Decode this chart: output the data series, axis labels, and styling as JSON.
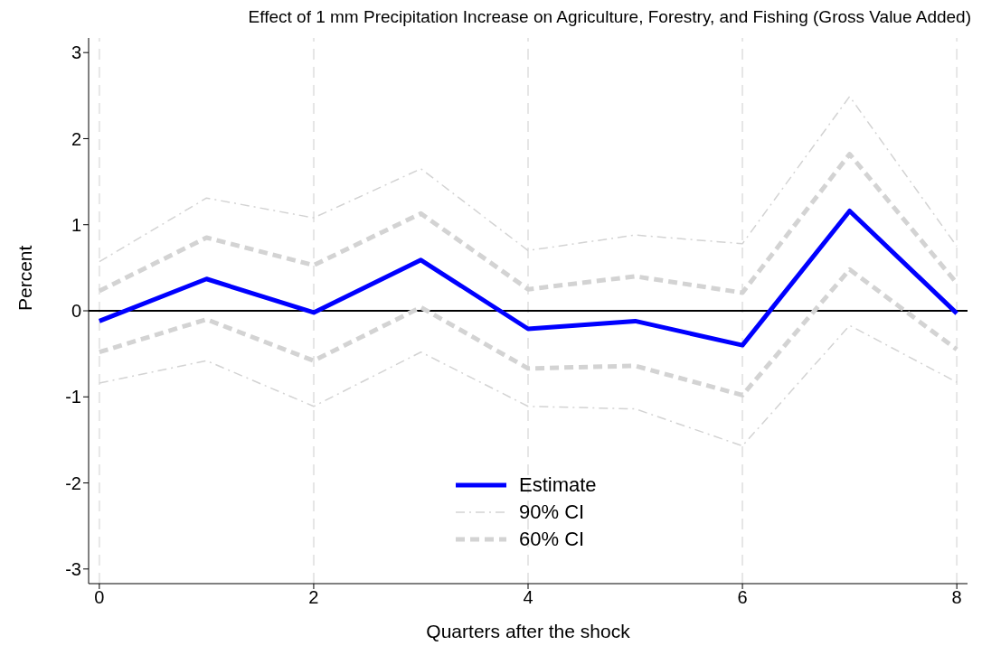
{
  "chart_data": {
    "type": "line",
    "title": "Effect of 1 mm Precipitation Increase on Agriculture, Forestry, and Fishing (Gross Value Added)",
    "xlabel": "Quarters after the shock",
    "ylabel": "Percent",
    "x": [
      0,
      1,
      2,
      3,
      4,
      5,
      6,
      7,
      8
    ],
    "series": [
      {
        "name": "Estimate",
        "color": "#0000ff",
        "line_style": "solid",
        "values": [
          -0.12,
          0.37,
          -0.02,
          0.59,
          -0.21,
          -0.12,
          -0.4,
          1.16,
          -0.03
        ]
      },
      {
        "name": "90% CI",
        "color": "#d3d3d3",
        "line_style": "dashed",
        "values": [
          0.57,
          1.31,
          1.08,
          1.65,
          0.7,
          0.88,
          0.78,
          2.49,
          0.75
        ]
      },
      {
        "color": "#d3d3d3",
        "line_style": "dashed",
        "values": [
          -0.84,
          -0.58,
          -1.11,
          -0.48,
          -1.11,
          -1.14,
          -1.57,
          -0.17,
          -0.83
        ]
      },
      {
        "name": "60% CI",
        "color": "#d3d3d3",
        "line_style": "dashed",
        "values": [
          0.23,
          0.85,
          0.53,
          1.13,
          0.25,
          0.4,
          0.21,
          1.82,
          0.32
        ]
      },
      {
        "color": "#d3d3d3",
        "line_style": "dashed",
        "values": [
          -0.48,
          -0.1,
          -0.58,
          0.04,
          -0.67,
          -0.64,
          -0.98,
          0.48,
          -0.45
        ]
      }
    ],
    "xlim": [
      -0.1,
      8.1
    ],
    "xticks": [
      0,
      2,
      4,
      6,
      8
    ],
    "ylim": [
      -3.17,
      3.17
    ],
    "yticks": [
      -3,
      -2,
      -1,
      0,
      1,
      2,
      3
    ],
    "ref_lines": [
      {
        "axis": "y",
        "value": 0,
        "color": "#000000"
      }
    ],
    "grid": "x",
    "legend": "bottom",
    "marker": "none"
  }
}
